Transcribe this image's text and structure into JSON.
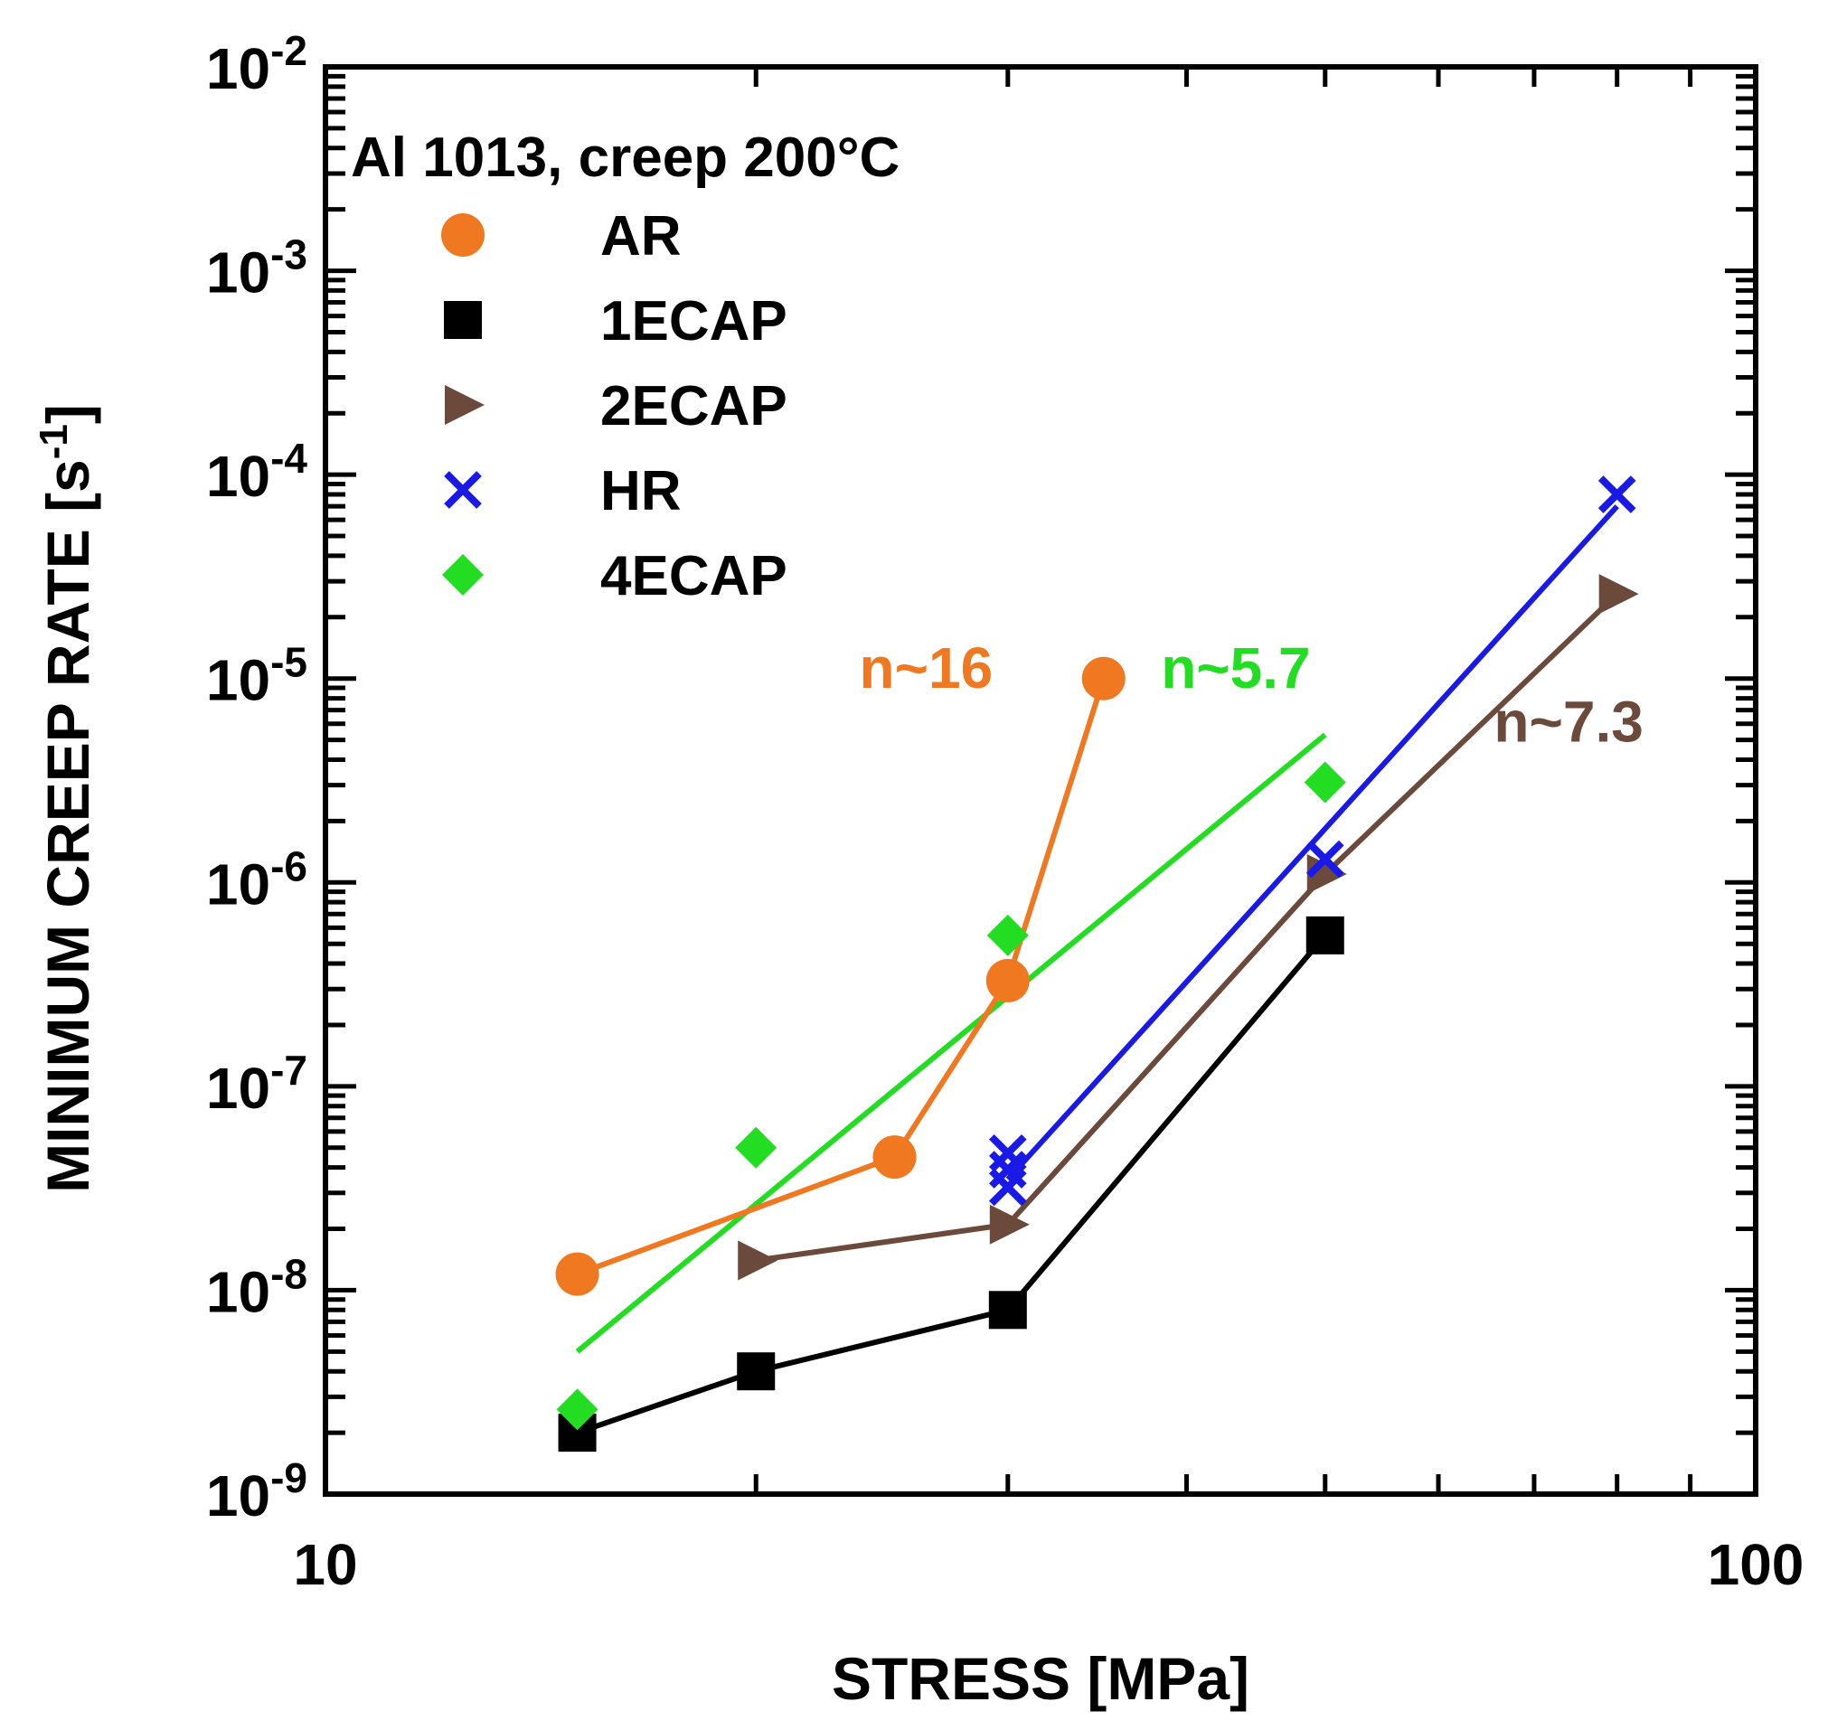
{
  "chart_data": {
    "type": "scatter",
    "title": "",
    "xlabel": "STRESS [MPa]",
    "ylabel": "MINIMUM CREEP RATE [s",
    "ylabel_sup": "-1",
    "ylabel_tail": "]",
    "xscale": "log",
    "yscale": "log",
    "xlim": [
      10,
      100
    ],
    "ylim": [
      1e-09,
      0.01
    ],
    "x_ticks": [
      {
        "value": 10,
        "label": "10"
      },
      {
        "value": 100,
        "label": "100"
      }
    ],
    "y_ticks": [
      {
        "value": 1e-09,
        "base": "10",
        "exp": "-9"
      },
      {
        "value": 1e-08,
        "base": "10",
        "exp": "-8"
      },
      {
        "value": 1e-07,
        "base": "10",
        "exp": "-7"
      },
      {
        "value": 1e-06,
        "base": "10",
        "exp": "-6"
      },
      {
        "value": 1e-05,
        "base": "10",
        "exp": "-5"
      },
      {
        "value": 0.0001,
        "base": "10",
        "exp": "-4"
      },
      {
        "value": 0.001,
        "base": "10",
        "exp": "-3"
      },
      {
        "value": 0.01,
        "base": "10",
        "exp": "-2"
      }
    ],
    "legend_title": "Al 1013, creep 200°C",
    "legend_position": "top-left",
    "series": [
      {
        "name": "AR",
        "marker": "circle",
        "color": "#f07820",
        "connect": true,
        "x": [
          15,
          25,
          30,
          35
        ],
        "y": [
          1.2e-08,
          4.5e-08,
          3.3e-07,
          1e-05
        ]
      },
      {
        "name": "1ECAP",
        "marker": "square",
        "color": "#000000",
        "connect": true,
        "x": [
          15,
          20,
          30,
          50
        ],
        "y": [
          2e-09,
          4e-09,
          8e-09,
          5.5e-07
        ]
      },
      {
        "name": "2ECAP",
        "marker": "triangle-right",
        "color": "#6b4a3c",
        "connect": true,
        "x": [
          20,
          30,
          50,
          80
        ],
        "y": [
          1.4e-08,
          2.1e-08,
          1.1e-06,
          2.6e-05
        ]
      },
      {
        "name": "HR",
        "marker": "x",
        "color": "#1a1ae6",
        "connect": false,
        "x": [
          30,
          30,
          30,
          50,
          80
        ],
        "y": [
          4.7e-08,
          3.9e-08,
          3.2e-08,
          1.3e-06,
          8e-05
        ]
      },
      {
        "name": "4ECAP",
        "marker": "diamond",
        "color": "#22dd22",
        "connect": false,
        "x": [
          15,
          20,
          30,
          50
        ],
        "y": [
          2.6e-09,
          5e-08,
          5.5e-07,
          3.1e-06
        ]
      }
    ],
    "fit_lines": [
      {
        "series": "HR",
        "color": "#1a1ae6",
        "x": [
          30,
          80
        ],
        "y": [
          3.5e-08,
          7e-05
        ]
      },
      {
        "series": "4ECAP",
        "color": "#22dd22",
        "x": [
          15,
          50
        ],
        "y": [
          5e-09,
          5.3e-06
        ]
      }
    ],
    "annotations": [
      {
        "text": "n~16",
        "color": "#f07820",
        "x": 26.3,
        "y": 9e-06
      },
      {
        "text": "n~5.7",
        "color": "#22dd22",
        "x": 43.3,
        "y": 9e-06
      },
      {
        "text": "n~7.3",
        "color": "#6b4a3c",
        "x": 74.0,
        "y": 4.9e-06
      }
    ]
  }
}
